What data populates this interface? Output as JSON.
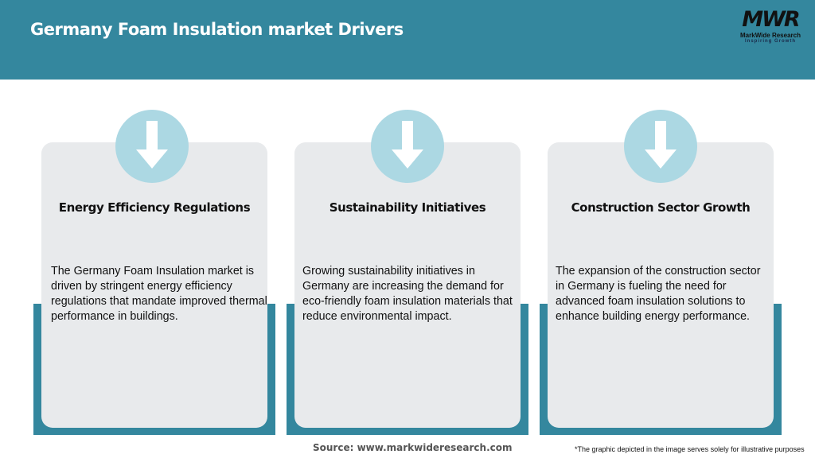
{
  "header": {
    "title": "Germany Foam Insulation market Drivers"
  },
  "logo": {
    "mark": "MWR",
    "name": "MarkWide Research",
    "tagline": "Inspiring Growth"
  },
  "colors": {
    "header": "#34879e",
    "card": "#e8eaec",
    "circle": "#acd8e3"
  },
  "cards": [
    {
      "icon": "arrow-down-icon",
      "title": "Energy Efficiency Regulations",
      "text": "The Germany Foam Insulation market is driven by stringent energy efficiency regulations that mandate improved thermal performance in buildings."
    },
    {
      "icon": "arrow-down-icon",
      "title": "Sustainability Initiatives",
      "text": "Growing sustainability initiatives in Germany are increasing the demand for eco-friendly foam insulation materials that reduce environmental impact."
    },
    {
      "icon": "arrow-down-icon",
      "title": "Construction Sector Growth",
      "text": "The expansion of the construction sector in Germany is fueling the need for advanced foam insulation solutions to enhance building energy performance."
    }
  ],
  "footer": {
    "source": "Source: www.markwideresearch.com",
    "note": "*The graphic depicted in the image serves solely for illustrative purposes"
  }
}
